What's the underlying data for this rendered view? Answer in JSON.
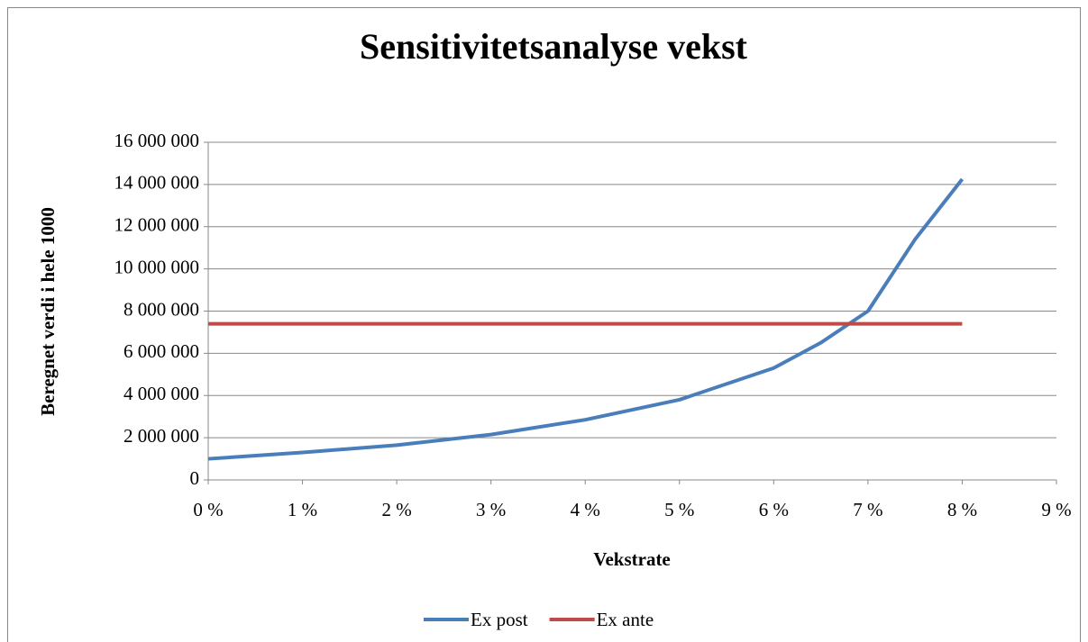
{
  "chart_data": {
    "type": "line",
    "title": "Sensitivitetsanalyse vekst",
    "x_label": "Vekstrate",
    "y_label": "Beregnet verdi i hele 1000",
    "series": [
      {
        "name": "Ex post",
        "color": "#4a7ebb",
        "x": [
          0,
          1,
          2,
          3,
          4,
          5,
          6,
          6.5,
          7,
          7.5,
          8
        ],
        "values": [
          1000000,
          1300000,
          1650000,
          2150000,
          2850000,
          3800000,
          5300000,
          6500000,
          8000000,
          11400000,
          14250000
        ]
      },
      {
        "name": "Ex ante",
        "color": "#be4b48",
        "x": [
          0,
          8
        ],
        "values": [
          7400000,
          7400000
        ]
      }
    ],
    "xlim": [
      0,
      9
    ],
    "xticks": [
      {
        "value": 0,
        "label": "0 %"
      },
      {
        "value": 1,
        "label": "1 %"
      },
      {
        "value": 2,
        "label": "2 %"
      },
      {
        "value": 3,
        "label": "3 %"
      },
      {
        "value": 4,
        "label": "4 %"
      },
      {
        "value": 5,
        "label": "5 %"
      },
      {
        "value": 6,
        "label": "6 %"
      },
      {
        "value": 7,
        "label": "7 %"
      },
      {
        "value": 8,
        "label": "8 %"
      },
      {
        "value": 9,
        "label": "9 %"
      }
    ],
    "ylim": [
      0,
      16000000
    ],
    "yticks": [
      0,
      {
        "value": 2000000,
        "label": "2 000 000"
      },
      {
        "value": 4000000,
        "label": "4 000 000"
      },
      {
        "value": 6000000,
        "label": "6 000 000"
      },
      {
        "value": 8000000,
        "label": "8 000 000"
      },
      {
        "value": 10000000,
        "label": "10 000 000"
      },
      {
        "value": 12000000,
        "label": "12 000 000"
      },
      {
        "value": 14000000,
        "label": "14 000 000"
      },
      {
        "value": 16000000,
        "label": "16 000 000"
      }
    ],
    "grid": true,
    "legend": "bottom"
  }
}
